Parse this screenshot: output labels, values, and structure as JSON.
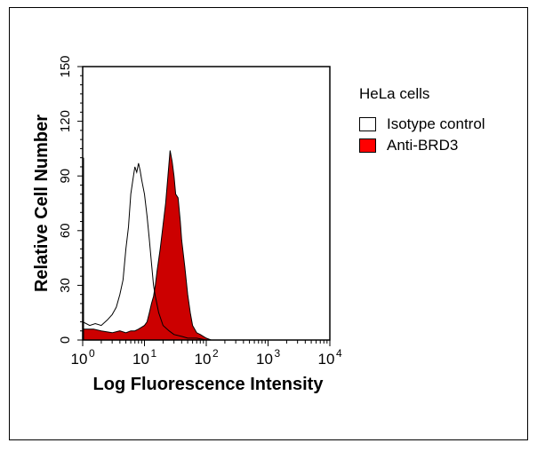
{
  "chart_data": {
    "type": "area",
    "xlabel": "Log Fluorescence Intensity",
    "ylabel": "Relative Cell Number",
    "xscale": "log",
    "xlim": [
      1,
      10000
    ],
    "ylim": [
      0,
      150
    ],
    "xticks": [
      {
        "base": "10",
        "exp": "0"
      },
      {
        "base": "10",
        "exp": "1"
      },
      {
        "base": "10",
        "exp": "2"
      },
      {
        "base": "10",
        "exp": "3"
      },
      {
        "base": "10",
        "exp": "4"
      }
    ],
    "yticks": [
      "0",
      "30",
      "60",
      "90",
      "120",
      "150"
    ],
    "grid": false,
    "legend": {
      "title": "HeLa cells",
      "placement": "right"
    },
    "series": [
      {
        "name": "Isotype control",
        "style": "outline",
        "color": "#000000",
        "x": [
          1,
          1.3,
          1.6,
          2,
          2.5,
          3,
          3.5,
          4,
          4.5,
          5,
          5.5,
          6,
          6.5,
          7,
          7.5,
          8,
          8.5,
          9,
          10,
          11,
          12,
          13,
          14,
          15,
          17,
          20,
          25,
          30,
          40,
          50,
          70,
          100
        ],
        "y": [
          10,
          8,
          9,
          8,
          11,
          14,
          18,
          25,
          33,
          50,
          62,
          80,
          88,
          95,
          92,
          97,
          93,
          88,
          80,
          68,
          55,
          42,
          30,
          24,
          15,
          8,
          5,
          3,
          2,
          1,
          1,
          0
        ]
      },
      {
        "name": "Anti-BRD3",
        "style": "filled",
        "color": "#CC0000",
        "legend_color": "#FF0000",
        "x": [
          1,
          1.5,
          2,
          3,
          4,
          5,
          6,
          7,
          8,
          9,
          10,
          11,
          12,
          13,
          14,
          15,
          16,
          18,
          20,
          22,
          24,
          26,
          28,
          30,
          32,
          35,
          38,
          40,
          45,
          50,
          55,
          60,
          70,
          80,
          100,
          120
        ],
        "y": [
          6,
          6,
          5,
          4,
          5,
          4,
          5,
          5,
          6,
          7,
          8,
          10,
          15,
          20,
          24,
          30,
          38,
          50,
          63,
          75,
          90,
          104,
          98,
          90,
          80,
          78,
          65,
          55,
          40,
          25,
          15,
          8,
          4,
          3,
          1,
          0
        ]
      }
    ]
  }
}
